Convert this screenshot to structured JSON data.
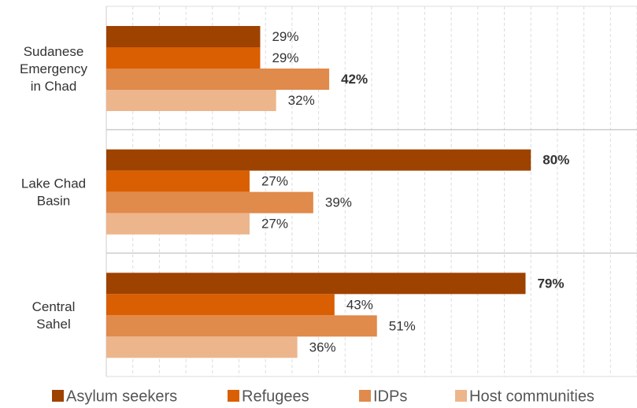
{
  "chart_data": {
    "type": "bar",
    "orientation": "horizontal",
    "categories": [
      [
        "Sudanese",
        "Emergency",
        "in Chad"
      ],
      [
        "Lake Chad",
        "Basin"
      ],
      [
        "Central",
        "Sahel"
      ]
    ],
    "series": [
      {
        "name": "Asylum seekers",
        "color": "#9e4200",
        "values": [
          29,
          80,
          79
        ],
        "value_labels": [
          "29%",
          "80%",
          "79%"
        ]
      },
      {
        "name": "Refugees",
        "color": "#d95f02",
        "values": [
          29,
          27,
          43
        ],
        "value_labels": [
          "29%",
          "27%",
          "43%"
        ]
      },
      {
        "name": "IDPs",
        "color": "#e08a4b",
        "values": [
          42,
          39,
          51
        ],
        "value_labels": [
          "42%",
          "39%",
          "51%"
        ]
      },
      {
        "name": "Host communities",
        "color": "#edb58c",
        "values": [
          32,
          27,
          36
        ],
        "value_labels": [
          "32%",
          "27%",
          "36%"
        ]
      }
    ],
    "xlim": [
      0,
      100
    ],
    "xticks": [
      0,
      5,
      10,
      15,
      20,
      25,
      30,
      35,
      40,
      45,
      50,
      55,
      60,
      65,
      70,
      75,
      80,
      85,
      90,
      95,
      100
    ],
    "grid": true,
    "legend": "bottom"
  }
}
